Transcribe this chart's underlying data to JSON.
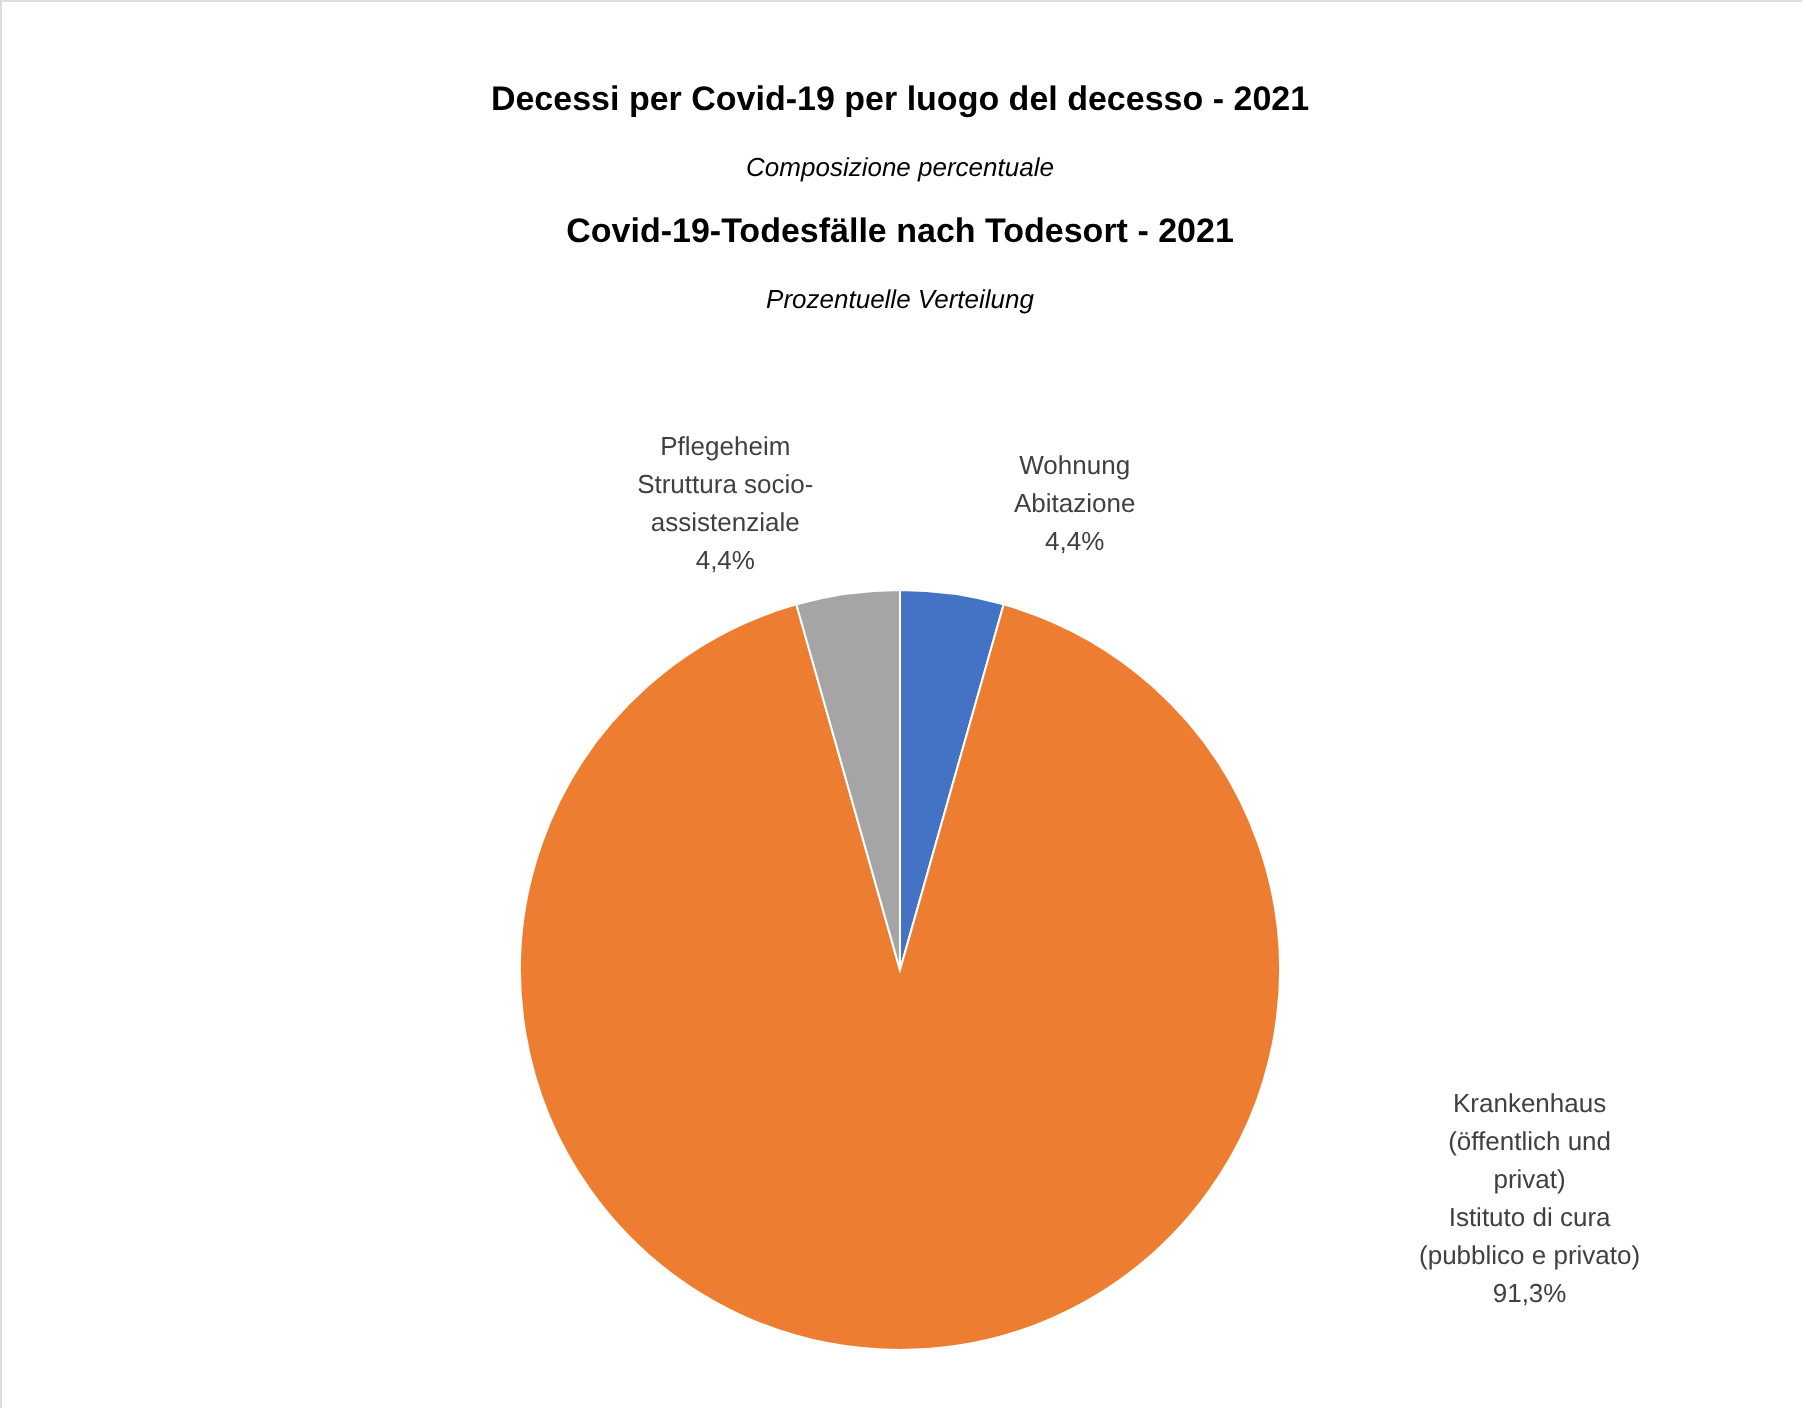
{
  "chart_data": {
    "type": "pie",
    "title": [
      "Decessi per Covid-19 per luogo del decesso - 2021",
      "Covid-19-Todesfälle nach Todesort - 2021"
    ],
    "subtitle": [
      "Composizione percentuale",
      "Prozentuelle Verteilung"
    ],
    "categories": [
      "Wohnung\nAbitazione",
      "Krankenhaus\n(öffentlich und\nprivat)\nIstituto di cura\n(pubblico e privato)",
      "Pflegeheim\nStruttura socio-\nassistenziale"
    ],
    "values": [
      4.4,
      91.3,
      4.4
    ],
    "colors": [
      "#4472c4",
      "#ed7d31",
      "#a5a5a5"
    ],
    "value_labels": [
      "4,4%",
      "91,3%",
      "4,4%"
    ]
  }
}
